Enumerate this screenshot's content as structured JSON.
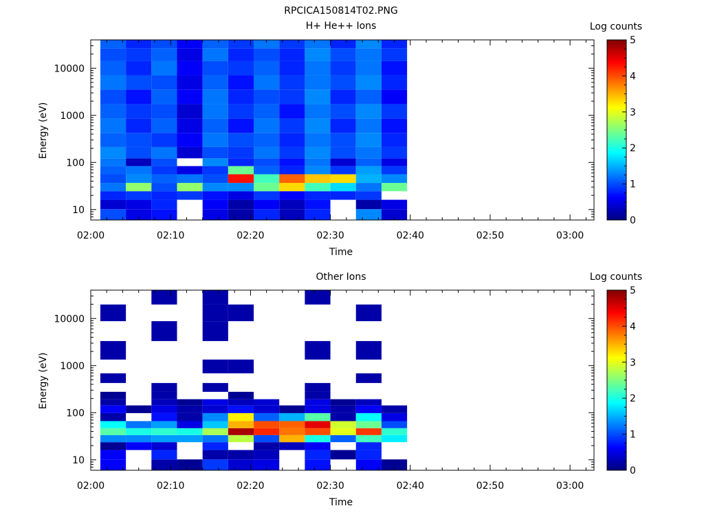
{
  "figure_title": "RPCICA150814T02.PNG",
  "colorbar_label": "Log counts",
  "colorbar_ticks": [
    "0",
    "1",
    "2",
    "3",
    "4",
    "5"
  ],
  "colorscale": [
    "#00007f",
    "#0000ff",
    "#007fff",
    "#00ffff",
    "#7fff7f",
    "#ffff00",
    "#ff7f00",
    "#ff0000",
    "#7f0000"
  ],
  "chart_data": [
    {
      "type": "heatmap",
      "title": "H+ He++ Ions",
      "xlabel": "Time",
      "ylabel": "Energy (eV)",
      "x_tick_labels": [
        "02:00",
        "02:10",
        "02:20",
        "02:30",
        "02:40",
        "02:50",
        "03:00"
      ],
      "y_tick_labels": [
        "10",
        "100",
        "1000",
        "10000"
      ],
      "y_scale": "log",
      "ylim": [
        6,
        40000
      ],
      "xlim_minutes": [
        0,
        63
      ],
      "z_range": [
        0,
        5
      ],
      "scan_start_minutes": [
        1.2,
        4.4,
        7.6,
        10.8,
        14.0,
        17.2,
        20.4,
        23.6,
        26.8,
        30.0,
        33.2,
        36.4
      ],
      "scan_width_minutes": 3.2,
      "energy_bands": [
        {
          "energy": 8,
          "values": [
            1.0,
            0.5,
            0.7,
            null,
            0.5,
            0.2,
            0.8,
            0.3,
            0.8,
            null,
            1.3,
            0.4
          ]
        },
        {
          "energy": 13,
          "values": [
            0.4,
            0.5,
            0.8,
            null,
            0.6,
            0.2,
            0.6,
            0.3,
            0.7,
            null,
            0.2,
            0.5
          ]
        },
        {
          "energy": 20,
          "values": [
            0.8,
            0.9,
            0.8,
            0.9,
            0.7,
            0.5,
            0.9,
            0.6,
            0.8,
            0.8,
            0.9,
            null
          ]
        },
        {
          "energy": 30,
          "values": [
            1.2,
            2.6,
            1.0,
            2.6,
            1.3,
            1.3,
            2.4,
            3.3,
            2.2,
            1.7,
            1.2,
            2.4
          ]
        },
        {
          "energy": 45,
          "values": [
            1.0,
            1.3,
            1.1,
            1.2,
            1.0,
            4.3,
            2.2,
            3.9,
            3.4,
            3.3,
            1.5,
            1.3
          ]
        },
        {
          "energy": 70,
          "values": [
            1.1,
            1.2,
            0.9,
            0.5,
            0.9,
            2.4,
            1.1,
            0.8,
            1.3,
            0.9,
            1.4,
            0.9
          ]
        },
        {
          "energy": 100,
          "values": [
            1.2,
            0.3,
            1.0,
            null,
            1.3,
            0.8,
            1.0,
            0.7,
            1.2,
            0.4,
            1.1,
            0.5
          ]
        },
        {
          "energy": 150,
          "values": [
            1.3,
            1.0,
            1.2,
            0.4,
            1.0,
            0.9,
            1.2,
            0.9,
            1.3,
            1.0,
            1.2,
            0.9
          ]
        },
        {
          "energy": 300,
          "values": [
            1.1,
            1.0,
            0.9,
            0.6,
            1.2,
            1.0,
            1.1,
            0.8,
            1.2,
            1.0,
            1.3,
            0.8
          ]
        },
        {
          "energy": 600,
          "values": [
            1.2,
            0.8,
            1.1,
            0.5,
            1.1,
            0.7,
            1.2,
            0.9,
            1.3,
            0.8,
            1.2,
            0.7
          ]
        },
        {
          "energy": 1200,
          "values": [
            1.1,
            0.9,
            1.0,
            0.4,
            1.2,
            0.9,
            1.1,
            0.7,
            1.2,
            1.0,
            1.3,
            0.9
          ]
        },
        {
          "energy": 2500,
          "values": [
            1.0,
            0.7,
            1.1,
            0.6,
            1.2,
            0.8,
            1.0,
            0.9,
            1.3,
            0.8,
            1.1,
            0.6
          ]
        },
        {
          "energy": 5000,
          "values": [
            1.2,
            1.0,
            1.0,
            0.5,
            1.1,
            0.7,
            1.2,
            0.9,
            1.2,
            1.0,
            1.3,
            0.8
          ]
        },
        {
          "energy": 10000,
          "values": [
            1.1,
            0.8,
            1.2,
            0.6,
            1.0,
            0.9,
            1.1,
            0.8,
            1.2,
            0.9,
            1.2,
            0.7
          ]
        },
        {
          "energy": 20000,
          "values": [
            1.0,
            0.9,
            1.1,
            0.5,
            1.2,
            0.8,
            1.0,
            0.8,
            1.3,
            1.0,
            1.2,
            0.9
          ]
        },
        {
          "energy": 35000,
          "values": [
            1.1,
            0.8,
            1.0,
            0.6,
            1.1,
            0.9,
            1.2,
            0.9,
            1.2,
            0.8,
            1.3,
            0.8
          ]
        }
      ]
    },
    {
      "type": "heatmap",
      "title": "Other Ions",
      "xlabel": "Time",
      "ylabel": "Energy (eV)",
      "x_tick_labels": [
        "02:00",
        "02:10",
        "02:20",
        "02:30",
        "02:40",
        "02:50",
        "03:00"
      ],
      "y_tick_labels": [
        "10",
        "100",
        "1000",
        "10000"
      ],
      "y_scale": "log",
      "ylim": [
        6,
        40000
      ],
      "xlim_minutes": [
        0,
        63
      ],
      "z_range": [
        0,
        5
      ],
      "scan_start_minutes": [
        1.2,
        4.4,
        7.6,
        10.8,
        14.0,
        17.2,
        20.4,
        23.6,
        26.8,
        30.0,
        33.2,
        36.4
      ],
      "scan_width_minutes": 3.2,
      "energy_bands": [
        {
          "energy": 8,
          "values": [
            0.6,
            null,
            0.2,
            0.1,
            0.9,
            0.4,
            0.5,
            null,
            0.7,
            null,
            0.6,
            0.1
          ]
        },
        {
          "energy": 13,
          "values": [
            0.6,
            null,
            0.8,
            null,
            0.2,
            0.2,
            0.3,
            null,
            0.8,
            0.1,
            0.8,
            null
          ]
        },
        {
          "energy": 20,
          "values": [
            0.1,
            0.6,
            0.4,
            null,
            0.8,
            null,
            0.2,
            0.3,
            0.6,
            null,
            0.8,
            null
          ]
        },
        {
          "energy": 28,
          "values": [
            1.3,
            1.3,
            1.4,
            1.4,
            1.2,
            2.8,
            1.0,
            3.5,
            2.0,
            1.1,
            2.2,
            1.8
          ]
        },
        {
          "energy": 40,
          "values": [
            2.3,
            2.0,
            2.1,
            2.0,
            2.7,
            4.8,
            4.2,
            3.8,
            4.0,
            3.0,
            4.1,
            2.1
          ]
        },
        {
          "energy": 55,
          "values": [
            1.9,
            1.2,
            1.4,
            0.5,
            1.6,
            3.5,
            4.0,
            3.9,
            4.5,
            2.9,
            2.4,
            1.0
          ]
        },
        {
          "energy": 80,
          "values": [
            0.2,
            null,
            0.7,
            0.2,
            1.3,
            3.2,
            1.1,
            1.5,
            2.3,
            0.2,
            1.9,
            0.5
          ]
        },
        {
          "energy": 120,
          "values": [
            0.6,
            0.1,
            0.5,
            0.2,
            0.4,
            0.7,
            0.4,
            0.1,
            0.5,
            0.2,
            0.6,
            0.2
          ]
        },
        {
          "energy": 170,
          "values": [
            0.2,
            null,
            0.3,
            0.1,
            0.5,
            0.3,
            0.4,
            null,
            0.5,
            0.1,
            0.3,
            null
          ]
        },
        {
          "energy": 220,
          "values": [
            0.1,
            null,
            0.2,
            null,
            null,
            0.1,
            null,
            null,
            0.2,
            null,
            null,
            null
          ]
        },
        {
          "energy": 350,
          "values": [
            null,
            null,
            0.2,
            null,
            0.2,
            null,
            null,
            null,
            0.2,
            null,
            null,
            null
          ]
        },
        {
          "energy": 520,
          "values": [
            0.2,
            null,
            null,
            null,
            null,
            null,
            null,
            null,
            null,
            null,
            0.2,
            null
          ]
        },
        {
          "energy": 900,
          "values": [
            null,
            null,
            null,
            null,
            0.2,
            0.2,
            null,
            null,
            null,
            null,
            null,
            null
          ]
        },
        {
          "energy": 2000,
          "values": [
            0.2,
            null,
            null,
            null,
            null,
            null,
            null,
            null,
            0.2,
            null,
            0.2,
            null
          ]
        },
        {
          "energy": 5500,
          "values": [
            null,
            null,
            0.2,
            null,
            0.2,
            null,
            null,
            null,
            null,
            null,
            null,
            null
          ]
        },
        {
          "energy": 14000,
          "values": [
            0.2,
            null,
            null,
            null,
            0.2,
            0.2,
            null,
            null,
            null,
            null,
            0.2,
            null
          ]
        },
        {
          "energy": 28000,
          "values": [
            null,
            null,
            0.2,
            null,
            0.2,
            null,
            null,
            null,
            0.2,
            null,
            null,
            null
          ]
        }
      ]
    }
  ]
}
